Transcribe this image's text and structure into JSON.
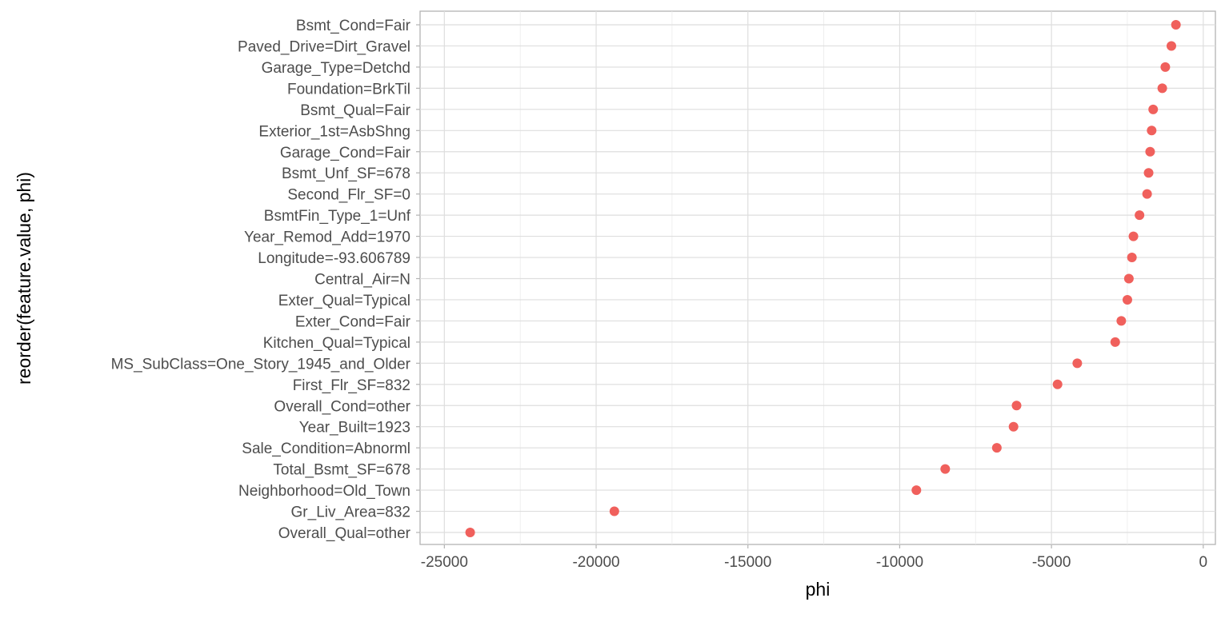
{
  "chart_data": {
    "type": "scatter",
    "title": "",
    "xlabel": "phi",
    "ylabel": "reorder(feature.value, phi)",
    "xlim": [
      -25800,
      400
    ],
    "x_ticks": [
      -25000,
      -20000,
      -15000,
      -10000,
      -5000,
      0
    ],
    "x_tick_labels": [
      "-25000",
      "-20000",
      "-15000",
      "-10000",
      "-5000",
      "0"
    ],
    "grid": true,
    "legend": "none",
    "point_color": "#F0605C",
    "categories": [
      "Bsmt_Cond=Fair",
      "Paved_Drive=Dirt_Gravel",
      "Garage_Type=Detchd",
      "Foundation=BrkTil",
      "Bsmt_Qual=Fair",
      "Exterior_1st=AsbShng",
      "Garage_Cond=Fair",
      "Bsmt_Unf_SF=678",
      "Second_Flr_SF=0",
      "BsmtFin_Type_1=Unf",
      "Year_Remod_Add=1970",
      "Longitude=-93.606789",
      "Central_Air=N",
      "Exter_Qual=Typical",
      "Exter_Cond=Fair",
      "Kitchen_Qual=Typical",
      "MS_SubClass=One_Story_1945_and_Older",
      "First_Flr_SF=832",
      "Overall_Cond=other",
      "Year_Built=1923",
      "Sale_Condition=Abnorml",
      "Total_Bsmt_SF=678",
      "Neighborhood=Old_Town",
      "Gr_Liv_Area=832",
      "Overall_Qual=other"
    ],
    "values": [
      -900,
      -1050,
      -1250,
      -1350,
      -1650,
      -1700,
      -1750,
      -1800,
      -1850,
      -2100,
      -2300,
      -2350,
      -2450,
      -2500,
      -2700,
      -2900,
      -4150,
      -4800,
      -6150,
      -6250,
      -6800,
      -8500,
      -9450,
      -19400,
      -24150
    ]
  }
}
